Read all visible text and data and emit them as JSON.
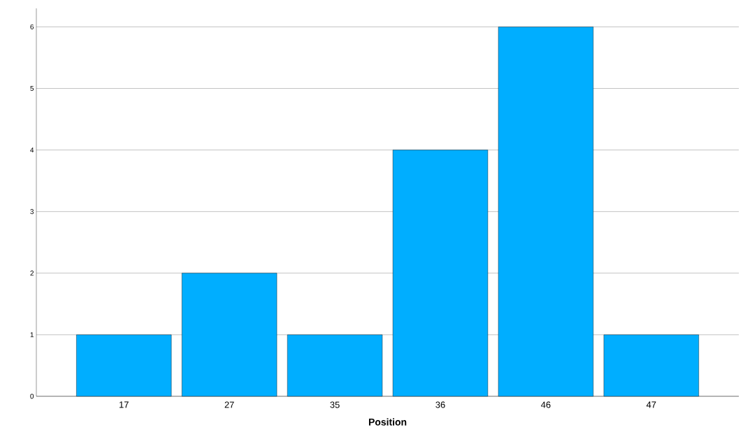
{
  "chart_data": {
    "type": "bar",
    "xlabel": "**Position**",
    "categories": [
      "17",
      "27",
      "35",
      "36",
      "46",
      "47"
    ],
    "values": [
      1,
      2,
      1,
      4,
      6,
      1
    ],
    "color": "#00aeff",
    "ylim": [
      0,
      6.3
    ],
    "yticks": [
      0,
      1,
      2,
      3,
      4,
      5,
      6
    ],
    "grid": "y"
  }
}
